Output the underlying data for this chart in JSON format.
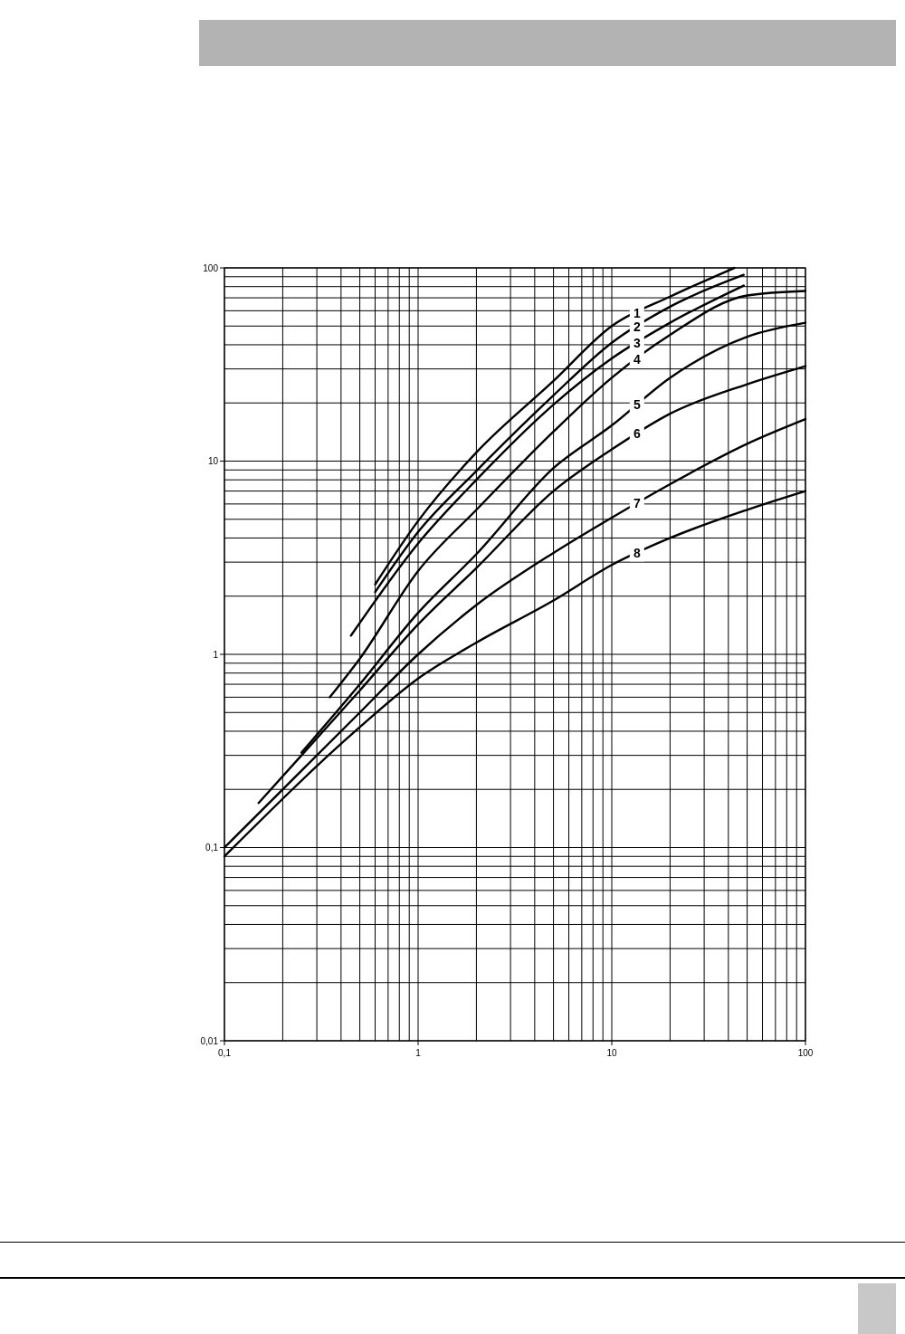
{
  "chart_data": {
    "type": "line",
    "log": "xy",
    "grid": true,
    "marker": "none",
    "xlim": [
      0.1,
      100
    ],
    "ylim": [
      0.01,
      100
    ],
    "xticks": [
      {
        "value": 0.1,
        "label": "0,1"
      },
      {
        "value": 0.2,
        "label": null
      },
      {
        "value": 0.3,
        "label": null
      },
      {
        "value": 0.4,
        "label": null
      },
      {
        "value": 0.5,
        "label": null
      },
      {
        "value": 0.6,
        "label": null
      },
      {
        "value": 0.7,
        "label": null
      },
      {
        "value": 0.8,
        "label": null
      },
      {
        "value": 0.9,
        "label": null
      },
      1,
      {
        "value": 2,
        "label": null
      },
      {
        "value": 3,
        "label": null
      },
      {
        "value": 4,
        "label": null
      },
      {
        "value": 5,
        "label": null
      },
      {
        "value": 6,
        "label": null
      },
      {
        "value": 7,
        "label": null
      },
      {
        "value": 8,
        "label": null
      },
      {
        "value": 9,
        "label": null
      },
      10,
      {
        "value": 20,
        "label": null
      },
      {
        "value": 30,
        "label": null
      },
      {
        "value": 40,
        "label": null
      },
      {
        "value": 50,
        "label": null
      },
      {
        "value": 60,
        "label": null
      },
      {
        "value": 70,
        "label": null
      },
      {
        "value": 80,
        "label": null
      },
      {
        "value": 90,
        "label": null
      },
      100
    ],
    "yticks": [
      {
        "value": 0.01,
        "label": "0,01"
      },
      {
        "value": 0.02,
        "label": null
      },
      {
        "value": 0.03,
        "label": null
      },
      {
        "value": 0.04,
        "label": null
      },
      {
        "value": 0.05,
        "label": null
      },
      {
        "value": 0.06,
        "label": null
      },
      {
        "value": 0.07,
        "label": null
      },
      {
        "value": 0.08,
        "label": null
      },
      {
        "value": 0.09,
        "label": null
      },
      {
        "value": 0.1,
        "label": "0,1"
      },
      {
        "value": 0.2,
        "label": null
      },
      {
        "value": 0.3,
        "label": null
      },
      {
        "value": 0.4,
        "label": null
      },
      {
        "value": 0.5,
        "label": null
      },
      {
        "value": 0.6,
        "label": null
      },
      {
        "value": 0.7,
        "label": null
      },
      {
        "value": 0.8,
        "label": null
      },
      {
        "value": 0.9,
        "label": null
      },
      1,
      {
        "value": 2,
        "label": null
      },
      {
        "value": 3,
        "label": null
      },
      {
        "value": 4,
        "label": null
      },
      {
        "value": 5,
        "label": null
      },
      {
        "value": 6,
        "label": null
      },
      {
        "value": 7,
        "label": null
      },
      {
        "value": 8,
        "label": null
      },
      {
        "value": 9,
        "label": null
      },
      10,
      {
        "value": 20,
        "label": null
      },
      {
        "value": 30,
        "label": null
      },
      {
        "value": 40,
        "label": null
      },
      {
        "value": 50,
        "label": null
      },
      {
        "value": 60,
        "label": null
      },
      {
        "value": 70,
        "label": null
      },
      {
        "value": 80,
        "label": null
      },
      {
        "value": 90,
        "label": null
      },
      100
    ],
    "series": [
      {
        "name": "1",
        "color": "#000000",
        "x": [
          0.6,
          1,
          2,
          5,
          10,
          20,
          43
        ],
        "values": [
          2.3,
          4.9,
          11.1,
          26,
          50,
          71,
          100
        ]
      },
      {
        "name": "2",
        "color": "#000000",
        "x": [
          0.6,
          1,
          2,
          5,
          10,
          20,
          48
        ],
        "values": [
          2.1,
          4.3,
          8.9,
          21.9,
          41,
          63,
          92
        ]
      },
      {
        "name": "3",
        "color": "#000000",
        "x": [
          0.45,
          1,
          2,
          5,
          10,
          20,
          48
        ],
        "values": [
          1.25,
          3.75,
          8,
          19.6,
          34,
          52,
          81
        ]
      },
      {
        "name": "4",
        "color": "#000000",
        "x": [
          0.35,
          0.5,
          1,
          2,
          5,
          10,
          20,
          50,
          100
        ],
        "values": [
          0.6,
          0.95,
          2.7,
          5.6,
          14.2,
          27,
          45,
          72,
          76
        ]
      },
      {
        "name": "5",
        "color": "#000000",
        "x": [
          0.25,
          0.5,
          1,
          2,
          5,
          10,
          20,
          50,
          100
        ],
        "values": [
          0.31,
          0.7,
          1.64,
          3.3,
          9.2,
          15.3,
          27,
          44,
          52
        ]
      },
      {
        "name": "6",
        "color": "#000000",
        "x": [
          0.15,
          0.25,
          0.5,
          1,
          2,
          5,
          10,
          20,
          50,
          100
        ],
        "values": [
          0.17,
          0.3,
          0.65,
          1.43,
          2.8,
          7,
          11.5,
          17.6,
          25,
          31
        ]
      },
      {
        "name": "7",
        "color": "#000000",
        "x": [
          0.1,
          0.5,
          1,
          2,
          5,
          10,
          20,
          50,
          100
        ],
        "values": [
          0.1,
          0.5,
          1,
          1.8,
          3.35,
          5.1,
          7.6,
          12.3,
          16.5
        ]
      },
      {
        "name": "8",
        "color": "#000000",
        "x": [
          0.1,
          0.5,
          1,
          2,
          5,
          10,
          20,
          50,
          100
        ],
        "values": [
          0.09,
          0.42,
          0.75,
          1.15,
          1.9,
          2.9,
          4,
          5.6,
          7
        ]
      }
    ]
  }
}
